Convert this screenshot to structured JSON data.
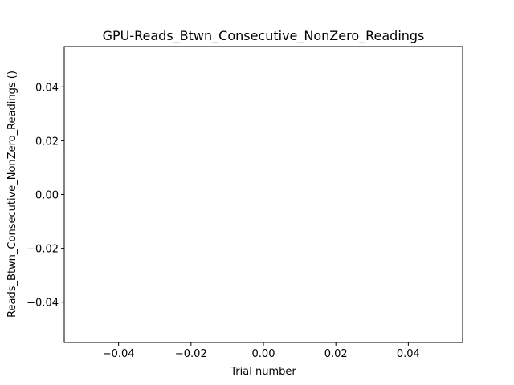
{
  "chart_data": {
    "type": "line",
    "title": "GPU-Reads_Btwn_Consecutive_NonZero_Readings",
    "xlabel": "Trial number",
    "ylabel": "Reads_Btwn_Consecutive_NonZero_Readings ()",
    "xlim": [
      -0.055,
      0.055
    ],
    "ylim": [
      -0.055,
      0.055
    ],
    "x_ticks": [
      -0.04,
      -0.02,
      0.0,
      0.02,
      0.04
    ],
    "x_tick_labels": [
      "−0.04",
      "−0.02",
      "0.00",
      "0.02",
      "0.04"
    ],
    "y_ticks": [
      -0.04,
      -0.02,
      0.0,
      0.02,
      0.04
    ],
    "y_tick_labels": [
      "−0.04",
      "−0.02",
      "0.00",
      "0.02",
      "0.04"
    ],
    "series": [
      {
        "x": [],
        "y": []
      }
    ],
    "grid": false,
    "legend": "none"
  }
}
